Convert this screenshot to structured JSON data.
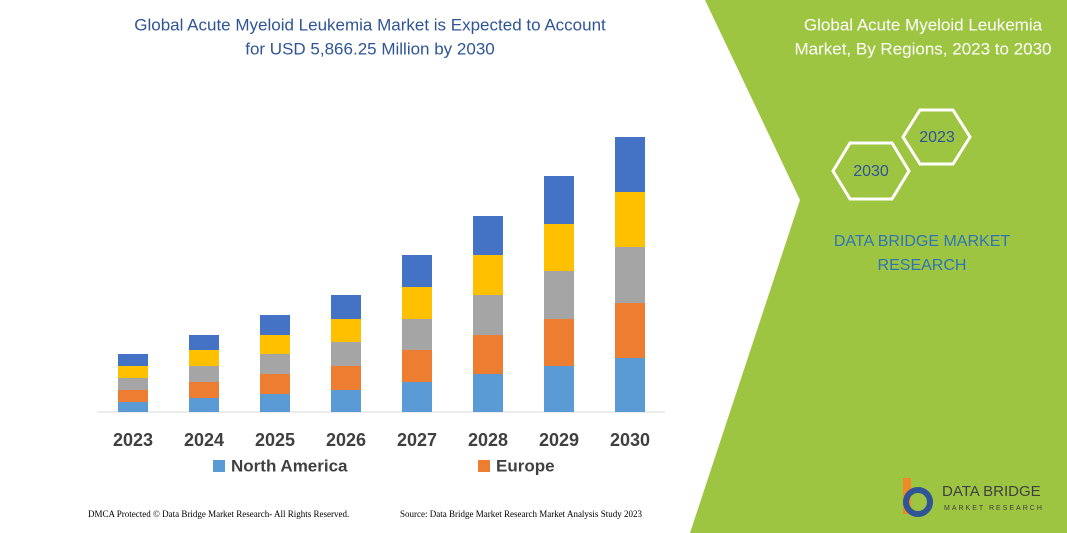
{
  "chart_data": {
    "type": "stacked-bar",
    "title": [
      "Global Acute Myeloid Leukemia Market is Expected to Account",
      "for USD 5,866.25 Million by 2030"
    ],
    "categories": [
      "2023",
      "2024",
      "2025",
      "2026",
      "2027",
      "2028",
      "2029",
      "2030"
    ],
    "series": [
      {
        "name": "North America",
        "color": "#5b9bd5",
        "values": [
          10,
          14,
          18,
          22,
          30,
          38,
          46,
          54
        ]
      },
      {
        "name": "Europe",
        "color": "#ed7d31",
        "values": [
          12,
          16,
          20,
          24,
          32,
          39,
          47,
          55
        ]
      },
      {
        "color": "#a5a5a5",
        "values": [
          12,
          16,
          20,
          24,
          31,
          40,
          48,
          56
        ]
      },
      {
        "color": "#ffc000",
        "values": [
          12,
          16,
          19,
          23,
          32,
          40,
          47,
          55
        ]
      },
      {
        "color": "#4472c4",
        "values": [
          12,
          15,
          20,
          24,
          32,
          39,
          48,
          55
        ]
      }
    ]
  },
  "panel": {
    "title": [
      "Global Acute Myeloid Leukemia",
      "Market, By Regions, 2023 to 2030"
    ],
    "hex_start": "2023",
    "hex_end": "2030",
    "brand": [
      "DATA BRIDGE MARKET",
      "RESEARCH"
    ],
    "logo_name": "DATA BRIDGE",
    "logo_sub": "MARKET RESEARCH"
  },
  "footer": {
    "left": "DMCA Protected © Data Bridge Market Research-  All Rights Reserved.",
    "right": "Source: Data Bridge Market Research  Market Analysis Study 2023"
  }
}
